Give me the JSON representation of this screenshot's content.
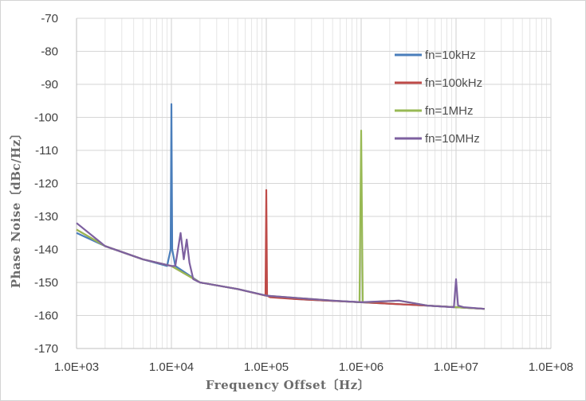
{
  "chart_data": {
    "type": "line",
    "xscale": "log",
    "xlim": [
      1000,
      100000000
    ],
    "ylim": [
      -170,
      -70
    ],
    "y_ticks": [
      -70,
      -80,
      -90,
      -100,
      -110,
      -120,
      -130,
      -140,
      -150,
      -160,
      -170
    ],
    "x_tick_labels": [
      "1.0E+03",
      "1.0E+04",
      "1.0E+05",
      "1.0E+06",
      "1.0E+07",
      "1.0E+08"
    ],
    "x_ticks": [
      1000,
      10000,
      100000,
      1000000,
      10000000,
      100000000
    ],
    "xlabel": "Frequency Offset〔Hz〕",
    "ylabel": "Phase Noise〔dBc/Hz〕",
    "grid": true,
    "legend_position": "top-right",
    "series": [
      {
        "name": "fn=10kHz",
        "color": "#4a7ebb",
        "x": [
          1000,
          2000,
          5000,
          9000,
          9800,
          10000,
          10200,
          11000,
          20000,
          50000,
          100000,
          200000,
          1000000,
          5000000,
          10000000,
          20000000
        ],
        "y": [
          -135,
          -139,
          -143,
          -145,
          -140,
          -96,
          -140,
          -145,
          -150,
          -152,
          -154,
          -155,
          -156,
          -157,
          -157.5,
          -158
        ]
      },
      {
        "name": "fn=100kHz",
        "color": "#be4b48",
        "x": [
          1000,
          2000,
          5000,
          10000,
          20000,
          50000,
          98000,
          100000,
          102000,
          110000,
          200000,
          1000000,
          5000000,
          10000000,
          20000000
        ],
        "y": [
          -134,
          -139,
          -143,
          -145,
          -150,
          -152,
          -154,
          -122,
          -154,
          -154.5,
          -155,
          -156,
          -157,
          -157.5,
          -158
        ]
      },
      {
        "name": "fn=1MHz",
        "color": "#98b954",
        "x": [
          1000,
          2000,
          5000,
          10000,
          20000,
          50000,
          100000,
          500000,
          960000,
          1000000,
          1040000,
          1100000,
          2500000,
          5000000,
          10000000,
          20000000
        ],
        "y": [
          -134,
          -139,
          -143,
          -145,
          -150,
          -152,
          -154,
          -155.5,
          -156,
          -104,
          -156,
          -156,
          -155.5,
          -157,
          -157.5,
          -158
        ]
      },
      {
        "name": "fn=10MHz",
        "color": "#7d60a0",
        "x": [
          1000,
          2000,
          5000,
          10000,
          11000,
          12500,
          13500,
          14500,
          15500,
          17000,
          20000,
          50000,
          100000,
          500000,
          1000000,
          2500000,
          5000000,
          9500000,
          10000000,
          10500000,
          12000000,
          20000000
        ],
        "y": [
          -132,
          -139,
          -143,
          -145,
          -145,
          -135,
          -143,
          -137,
          -144,
          -149,
          -150,
          -152,
          -154,
          -155.5,
          -156,
          -155.5,
          -157,
          -157.5,
          -149,
          -157,
          -157.5,
          -158
        ]
      }
    ]
  }
}
